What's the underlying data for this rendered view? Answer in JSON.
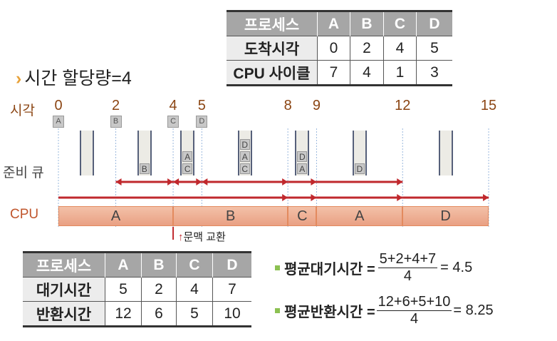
{
  "title": "시간 할당량=4",
  "colors": {
    "time_label": "#8b4513",
    "arrow": "#c0282d",
    "gantt_fill": "#eea98b",
    "bullet": "#8cc152"
  },
  "input_table": {
    "headers": [
      "프로세스",
      "A",
      "B",
      "C",
      "D"
    ],
    "rows": [
      [
        "도착시각",
        "0",
        "2",
        "4",
        "5"
      ],
      [
        "CPU 사이클",
        "7",
        "4",
        "1",
        "3"
      ]
    ]
  },
  "diagram": {
    "time_label": "시각",
    "queue_label": "준비 큐",
    "cpu_label": "CPU",
    "ticks": [
      0,
      2,
      4,
      5,
      8,
      9,
      12,
      15
    ],
    "arrivals": [
      {
        "t": 0,
        "p": "A"
      },
      {
        "t": 2,
        "p": "B"
      },
      {
        "t": 4,
        "p": "C"
      },
      {
        "t": 5,
        "p": "D"
      }
    ],
    "queues": [
      {
        "t": 1,
        "items": []
      },
      {
        "t": 3,
        "items": [
          "B"
        ]
      },
      {
        "t": 4.5,
        "items": [
          "A",
          "C"
        ]
      },
      {
        "t": 6.5,
        "items": [
          "D",
          "A",
          "C"
        ]
      },
      {
        "t": 8.5,
        "items": [
          "D",
          "A"
        ]
      },
      {
        "t": 10.5,
        "items": [
          "D"
        ]
      },
      {
        "t": 13.5,
        "items": []
      }
    ],
    "gantt": [
      {
        "p": "A",
        "start": 0,
        "end": 4
      },
      {
        "p": "B",
        "start": 4,
        "end": 8
      },
      {
        "p": "C",
        "start": 8,
        "end": 9
      },
      {
        "p": "A",
        "start": 9,
        "end": 12
      },
      {
        "p": "D",
        "start": 12,
        "end": 15
      }
    ],
    "context_switch": "문맥 교환"
  },
  "result_table": {
    "headers": [
      "프로세스",
      "A",
      "B",
      "C",
      "D"
    ],
    "rows": [
      [
        "대기시간",
        "5",
        "2",
        "4",
        "7"
      ],
      [
        "반환시간",
        "12",
        "6",
        "5",
        "10"
      ]
    ]
  },
  "formulas": [
    {
      "label": "평균대기시간 =",
      "numerator": "5+2+4+7",
      "denominator": "4",
      "result": "= 4.5"
    },
    {
      "label": "평균반환시간 =",
      "numerator": "12+6+5+10",
      "denominator": "4",
      "result": "= 8.25"
    }
  ]
}
